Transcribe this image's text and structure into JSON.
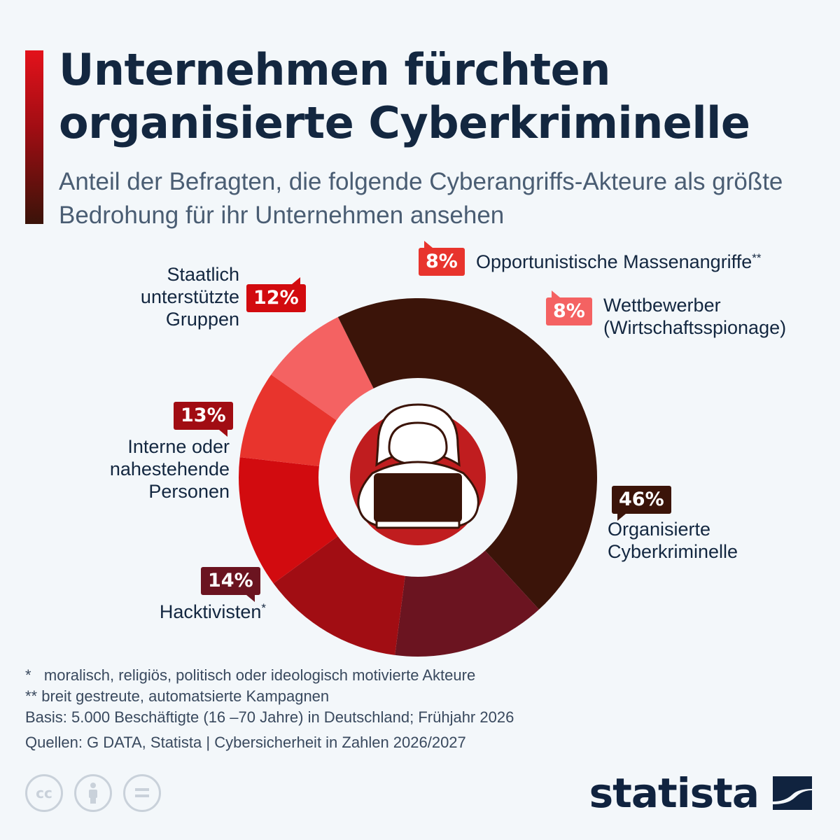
{
  "header": {
    "title": "Unternehmen fürchten organisierte Cyberkriminelle",
    "subtitle": "Anteil der Befragten, die folgende Cyberangriffs-Akteure als größte Bedrohung für ihr Unternehmen ansehen"
  },
  "chart_data": {
    "type": "pie",
    "variant": "donut",
    "unit": "%",
    "categories": [
      "Organisierte Cyberkriminelle",
      "Hacktivisten*",
      "Interne oder nahestehende Personen",
      "Staatlich unterstützte Gruppen",
      "Opportunistische Massenangriffe**",
      "Wettbewerber (Wirtschaftsspionage)"
    ],
    "values": [
      46,
      14,
      13,
      12,
      8,
      8
    ],
    "data_labels": [
      "46%",
      "14%",
      "13%",
      "12%",
      "8%",
      "8%"
    ],
    "colors": [
      "#3b1409",
      "#6b1420",
      "#a10d13",
      "#d20b0f",
      "#e8342d",
      "#f46262"
    ],
    "center_icon": "hooded-hacker-laptop-icon"
  },
  "labels": {
    "organized": [
      "Organisierte",
      "Cyberkriminelle"
    ],
    "hacktivists": "Hacktivisten",
    "hacktivists_mark": "*",
    "internal": [
      "Interne oder",
      "nahestehende",
      "Personen"
    ],
    "state": [
      "Staatlich",
      "unterstützte",
      "Gruppen"
    ],
    "mass": "Opportunistische Massenangriffe",
    "mass_mark": "**",
    "competitors": [
      "Wettbewerber",
      "(Wirtschaftsspionage)"
    ]
  },
  "footnotes": {
    "note1_mark": "*",
    "note1": "moralisch, religiös, politisch oder ideologisch motivierte Akteure",
    "note2": "** breit gestreute, automatsierte Kampagnen",
    "basis": "Basis: 5.000 Beschäftigte (16 –70 Jahre) in Deutschland; Frühjahr 2026",
    "sources": "Quellen: G DATA, Statista | Cybersicherheit in Zahlen 2026/2027"
  },
  "license_icons": {
    "cc": "cc",
    "by": "person-icon",
    "nd": "equals-icon"
  },
  "brand": {
    "name": "statista",
    "logo_icon": "statista-logo-icon",
    "color": "#10233f"
  }
}
